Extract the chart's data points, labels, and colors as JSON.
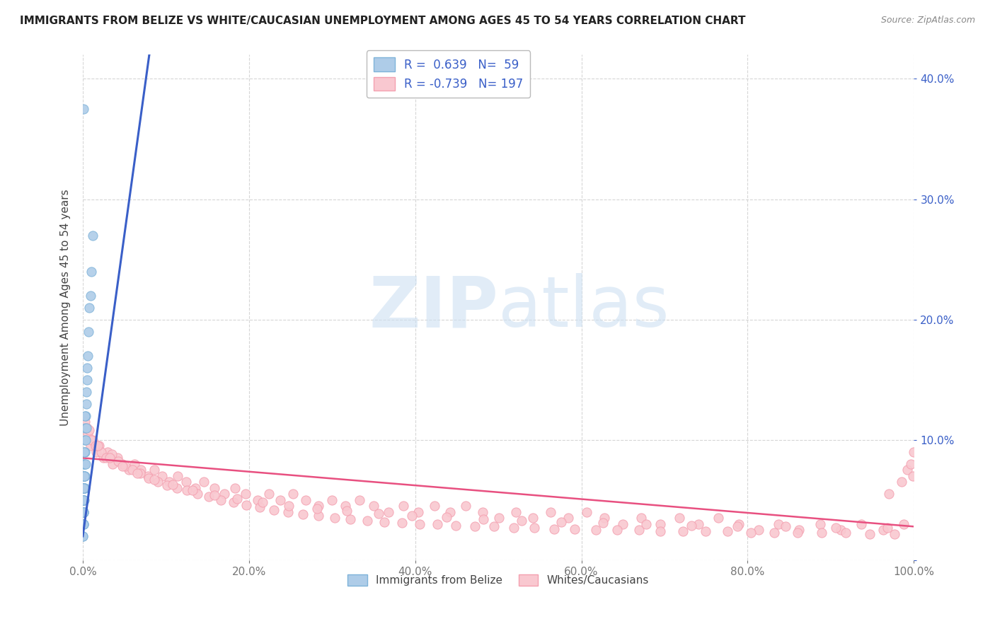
{
  "title": "IMMIGRANTS FROM BELIZE VS WHITE/CAUCASIAN UNEMPLOYMENT AMONG AGES 45 TO 54 YEARS CORRELATION CHART",
  "source": "Source: ZipAtlas.com",
  "ylabel": "Unemployment Among Ages 45 to 54 years",
  "xlim": [
    0.0,
    1.0
  ],
  "ylim": [
    0.0,
    0.42
  ],
  "xticks": [
    0.0,
    0.2,
    0.4,
    0.6,
    0.8,
    1.0
  ],
  "xtick_labels": [
    "0.0%",
    "20.0%",
    "40.0%",
    "60.0%",
    "80.0%",
    "100.0%"
  ],
  "yticks": [
    0.0,
    0.1,
    0.2,
    0.3,
    0.4
  ],
  "ytick_labels": [
    "",
    "10.0%",
    "20.0%",
    "30.0%",
    "40.0%"
  ],
  "watermark_zip": "ZIP",
  "watermark_atlas": "atlas",
  "blue_face": "#aecce8",
  "blue_edge": "#7fb3d9",
  "pink_face": "#f9c8d0",
  "pink_edge": "#f4a0b0",
  "trend_blue": "#3a5fc8",
  "trend_pink": "#e85080",
  "grid_color": "#cccccc",
  "background": "#ffffff",
  "legend_blue_label": "R =  0.639   N=  59",
  "legend_pink_label": "R = -0.739   N= 197",
  "bottom_legend_blue": "Immigrants from Belize",
  "bottom_legend_pink": "Whites/Caucasians",
  "blue_scatter_x": [
    0.0002,
    0.0003,
    0.0004,
    0.0005,
    0.0005,
    0.0006,
    0.0007,
    0.0008,
    0.0009,
    0.001,
    0.001,
    0.0011,
    0.0012,
    0.0013,
    0.0014,
    0.0015,
    0.0016,
    0.0017,
    0.0018,
    0.002,
    0.002,
    0.0022,
    0.0023,
    0.0025,
    0.0026,
    0.0028,
    0.003,
    0.0032,
    0.0034,
    0.0036,
    0.004,
    0.0042,
    0.0045,
    0.005,
    0.006,
    0.007,
    0.008,
    0.009,
    0.01,
    0.012,
    0.0001,
    0.0001,
    0.0002,
    0.0002,
    0.0003,
    0.0003,
    0.0004,
    0.0004,
    0.0005,
    0.0006,
    0.0006,
    0.0007,
    0.0008,
    0.0009,
    0.001,
    0.0015,
    0.002,
    0.003,
    0.0008,
    0.005
  ],
  "blue_scatter_y": [
    0.05,
    0.06,
    0.04,
    0.07,
    0.03,
    0.05,
    0.06,
    0.04,
    0.08,
    0.05,
    0.06,
    0.04,
    0.07,
    0.05,
    0.06,
    0.08,
    0.05,
    0.07,
    0.06,
    0.09,
    0.07,
    0.08,
    0.06,
    0.1,
    0.07,
    0.09,
    0.11,
    0.08,
    0.1,
    0.12,
    0.13,
    0.11,
    0.14,
    0.15,
    0.17,
    0.19,
    0.21,
    0.22,
    0.24,
    0.27,
    0.03,
    0.04,
    0.02,
    0.05,
    0.03,
    0.04,
    0.02,
    0.05,
    0.04,
    0.03,
    0.05,
    0.04,
    0.03,
    0.06,
    0.04,
    0.07,
    0.09,
    0.12,
    0.375,
    0.16
  ],
  "blue_trend_x0": 0.0,
  "blue_trend_x1": 0.08,
  "blue_trend_y0": 0.02,
  "blue_trend_y1": 0.42,
  "pink_trend_x0": 0.0,
  "pink_trend_x1": 1.0,
  "pink_trend_y0": 0.085,
  "pink_trend_y1": 0.028,
  "pink_scatter_x": [
    0.003,
    0.006,
    0.009,
    0.012,
    0.016,
    0.02,
    0.025,
    0.03,
    0.036,
    0.042,
    0.048,
    0.055,
    0.062,
    0.07,
    0.078,
    0.086,
    0.095,
    0.104,
    0.114,
    0.124,
    0.135,
    0.146,
    0.158,
    0.17,
    0.183,
    0.196,
    0.21,
    0.224,
    0.238,
    0.253,
    0.268,
    0.284,
    0.3,
    0.316,
    0.333,
    0.35,
    0.368,
    0.386,
    0.404,
    0.423,
    0.442,
    0.461,
    0.481,
    0.501,
    0.521,
    0.542,
    0.563,
    0.584,
    0.606,
    0.628,
    0.65,
    0.672,
    0.695,
    0.718,
    0.741,
    0.765,
    0.789,
    0.813,
    0.837,
    0.862,
    0.887,
    0.912,
    0.937,
    0.963,
    0.988,
    0.005,
    0.01,
    0.015,
    0.022,
    0.028,
    0.035,
    0.043,
    0.051,
    0.06,
    0.069,
    0.079,
    0.09,
    0.101,
    0.113,
    0.125,
    0.138,
    0.152,
    0.166,
    0.181,
    0.197,
    0.213,
    0.23,
    0.247,
    0.265,
    0.284,
    0.303,
    0.322,
    0.342,
    0.363,
    0.384,
    0.405,
    0.427,
    0.449,
    0.472,
    0.495,
    0.519,
    0.543,
    0.567,
    0.592,
    0.617,
    0.643,
    0.669,
    0.695,
    0.722,
    0.749,
    0.776,
    0.804,
    0.832,
    0.86,
    0.889,
    0.918,
    0.947,
    0.977,
    0.008,
    0.018,
    0.032,
    0.048,
    0.066,
    0.086,
    0.108,
    0.132,
    0.158,
    0.186,
    0.216,
    0.248,
    0.282,
    0.318,
    0.356,
    0.396,
    0.438,
    0.482,
    0.528,
    0.576,
    0.626,
    0.678,
    0.732,
    0.788,
    0.846,
    0.906,
    0.968,
    0.97,
    0.985,
    0.992,
    0.996,
    0.999,
    1.0
  ],
  "pink_scatter_y": [
    0.115,
    0.105,
    0.095,
    0.1,
    0.09,
    0.095,
    0.085,
    0.09,
    0.08,
    0.085,
    0.08,
    0.075,
    0.08,
    0.075,
    0.07,
    0.075,
    0.07,
    0.065,
    0.07,
    0.065,
    0.06,
    0.065,
    0.06,
    0.055,
    0.06,
    0.055,
    0.05,
    0.055,
    0.05,
    0.055,
    0.05,
    0.045,
    0.05,
    0.045,
    0.05,
    0.045,
    0.04,
    0.045,
    0.04,
    0.045,
    0.04,
    0.045,
    0.04,
    0.035,
    0.04,
    0.035,
    0.04,
    0.035,
    0.04,
    0.035,
    0.03,
    0.035,
    0.03,
    0.035,
    0.03,
    0.035,
    0.03,
    0.025,
    0.03,
    0.025,
    0.03,
    0.025,
    0.03,
    0.025,
    0.03,
    0.11,
    0.1,
    0.095,
    0.09,
    0.085,
    0.088,
    0.082,
    0.078,
    0.075,
    0.072,
    0.068,
    0.065,
    0.062,
    0.06,
    0.058,
    0.055,
    0.053,
    0.05,
    0.048,
    0.046,
    0.044,
    0.042,
    0.04,
    0.038,
    0.037,
    0.035,
    0.034,
    0.033,
    0.032,
    0.031,
    0.03,
    0.03,
    0.029,
    0.028,
    0.028,
    0.027,
    0.027,
    0.026,
    0.026,
    0.025,
    0.025,
    0.025,
    0.024,
    0.024,
    0.024,
    0.024,
    0.023,
    0.023,
    0.023,
    0.023,
    0.023,
    0.022,
    0.022,
    0.108,
    0.095,
    0.085,
    0.078,
    0.072,
    0.067,
    0.063,
    0.058,
    0.054,
    0.051,
    0.048,
    0.045,
    0.043,
    0.041,
    0.039,
    0.037,
    0.036,
    0.034,
    0.033,
    0.032,
    0.031,
    0.03,
    0.029,
    0.028,
    0.028,
    0.027,
    0.027,
    0.055,
    0.065,
    0.075,
    0.08,
    0.07,
    0.09
  ]
}
